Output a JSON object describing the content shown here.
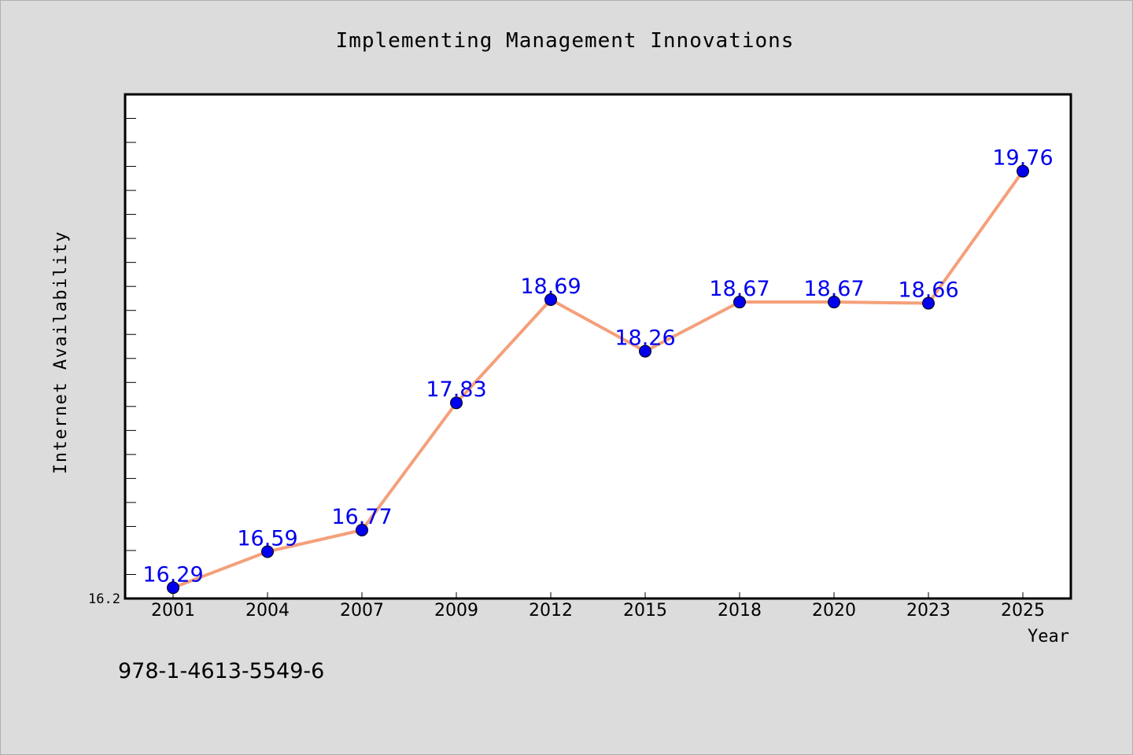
{
  "chart_data": {
    "type": "line",
    "title": "Implementing Management Innovations",
    "xlabel": "Year",
    "ylabel": "Internet Availability",
    "categories": [
      "2001",
      "2004",
      "2007",
      "2009",
      "2012",
      "2015",
      "2018",
      "2020",
      "2023",
      "2025"
    ],
    "series": [
      {
        "values": [
          16.29,
          16.59,
          16.77,
          17.83,
          18.69,
          18.26,
          18.67,
          18.67,
          18.66,
          19.76
        ]
      }
    ],
    "data_labels": [
      "16.29",
      "16.59",
      "16.77",
      "17.83",
      "18.69",
      "18.26",
      "18.67",
      "18.67",
      "18.66",
      "19.76"
    ],
    "y_tick_labels": [
      "16.2"
    ],
    "ylim": [
      16.2,
      20.4
    ],
    "grid": false,
    "line_color": "#f4a07a",
    "marker_color": "#0000ee",
    "label_color": "#0000ee"
  },
  "footer": {
    "isbn": "978-1-4613-5549-6"
  }
}
